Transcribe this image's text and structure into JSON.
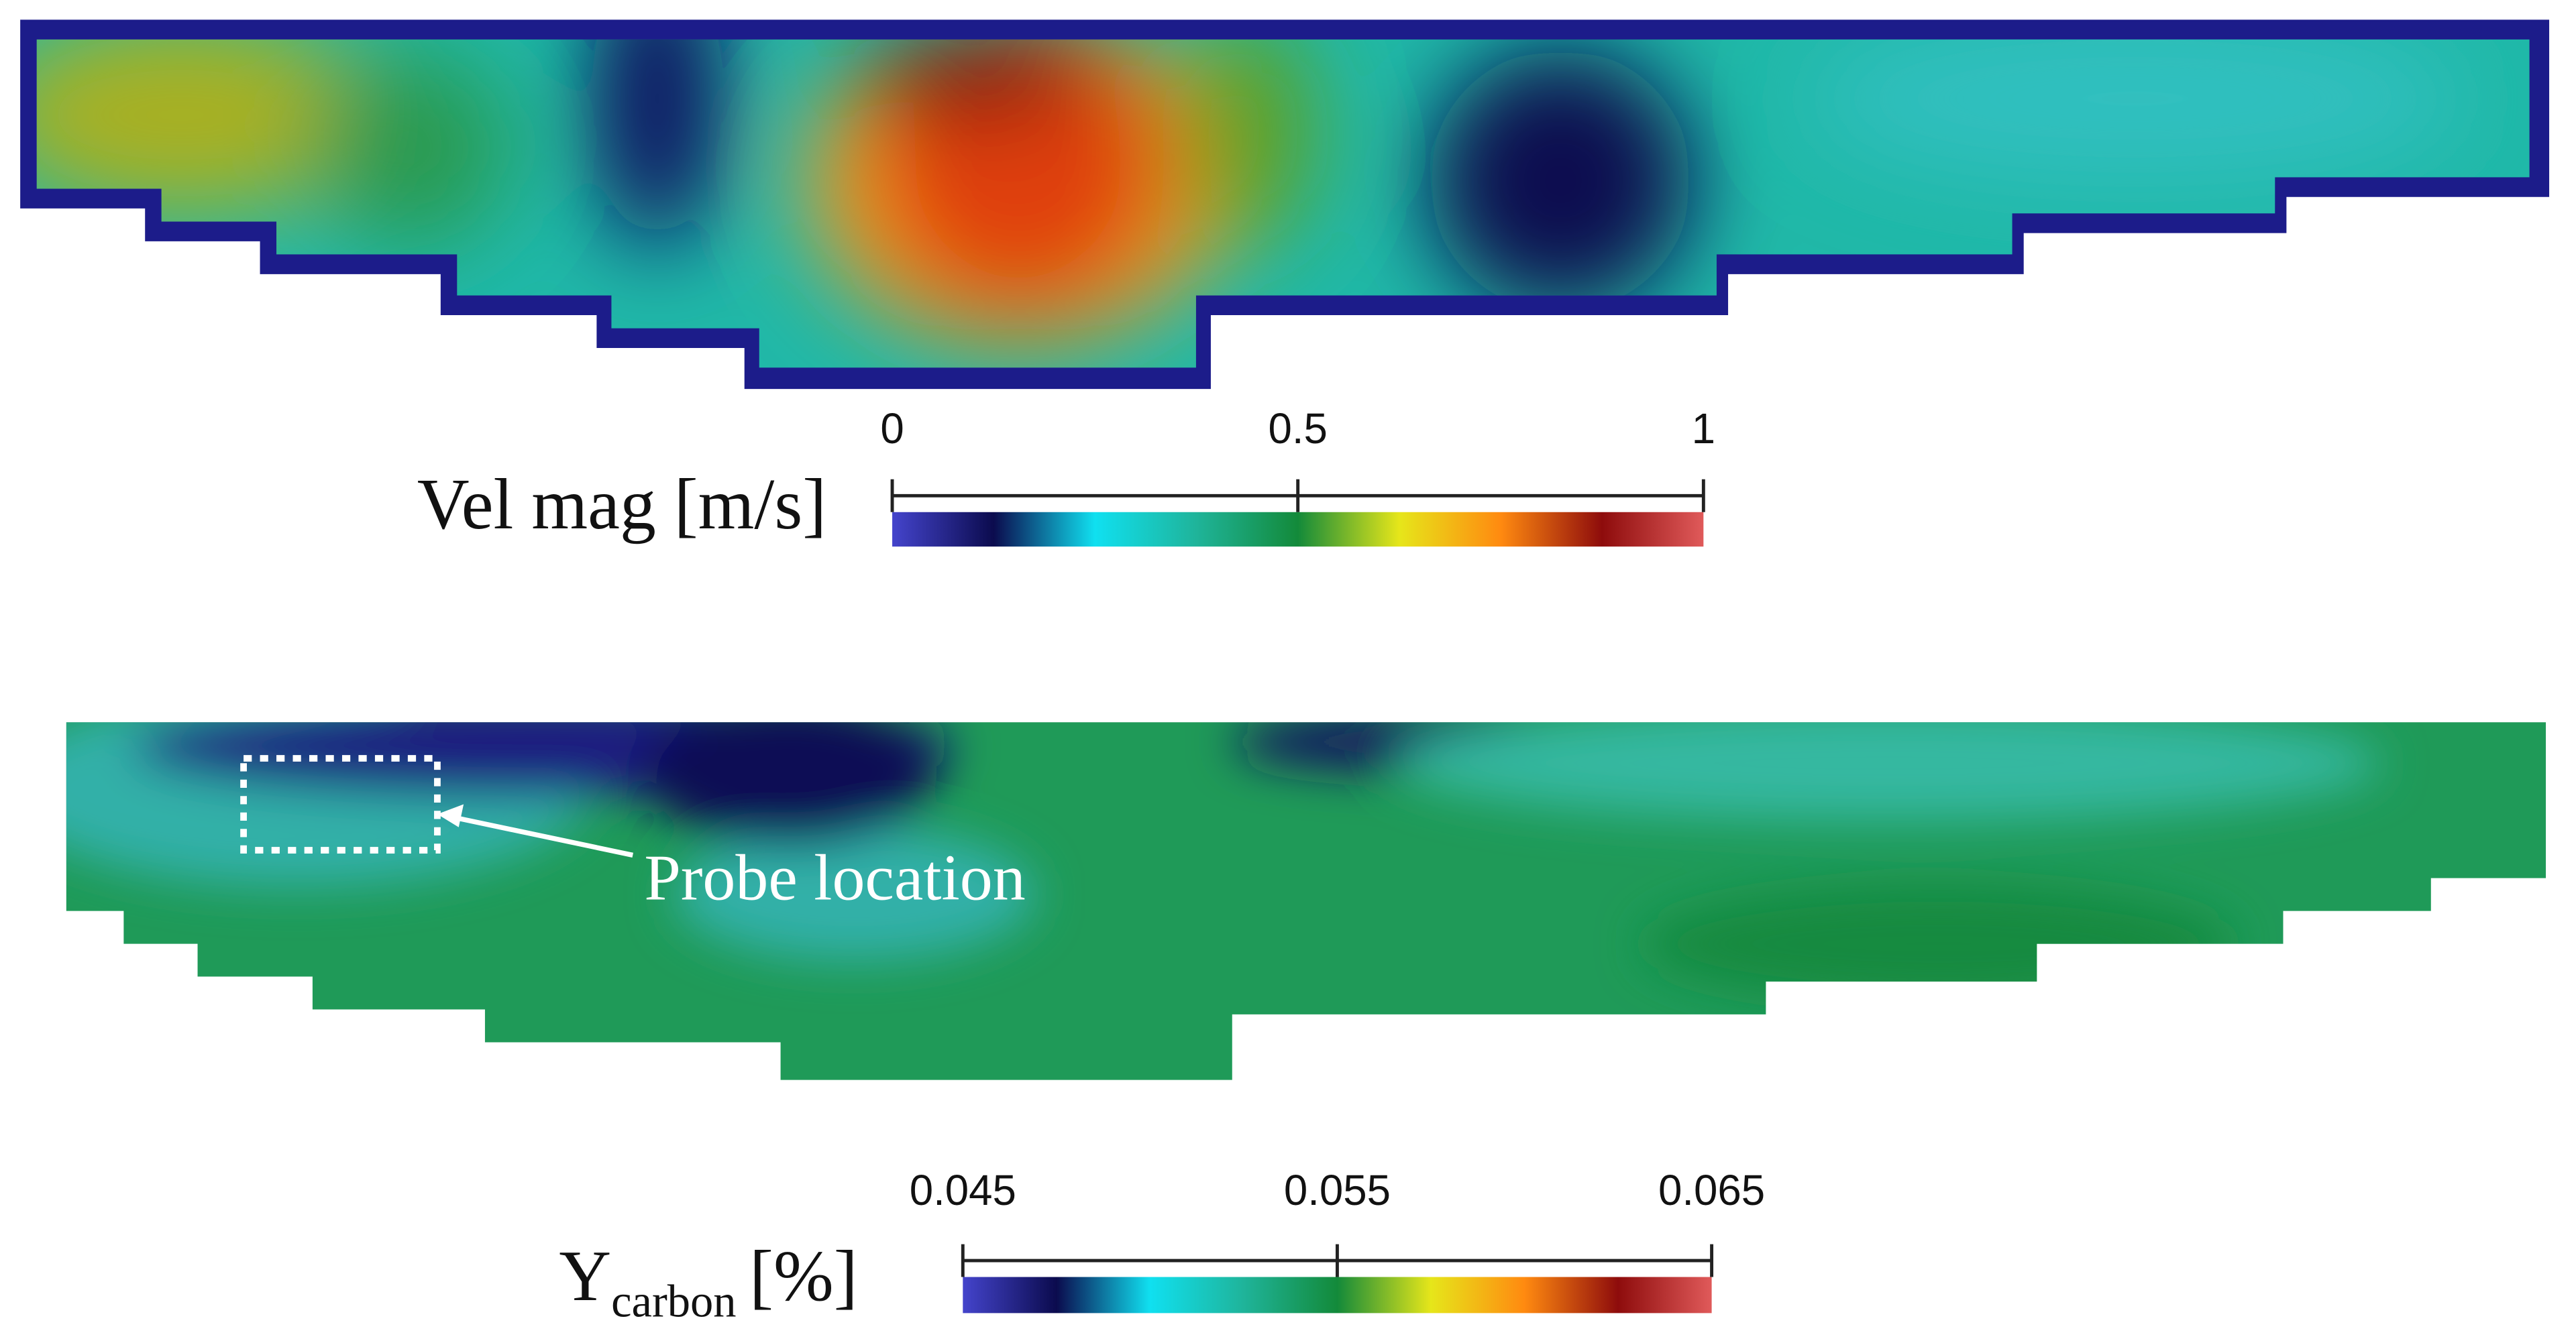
{
  "chart_data": [
    {
      "type": "contour",
      "colorbar_label": "Vel mag [m/s]",
      "clim": [
        0,
        1
      ],
      "cticks": [
        0,
        0.5,
        1
      ],
      "colormap": [
        "#4444cc",
        "#0b0b4e",
        "#10e0f0",
        "#1fb49a",
        "#138a3a",
        "#e6e61a",
        "#ff8a10",
        "#8e0c0c",
        "#e05a5a"
      ]
    },
    {
      "type": "contour",
      "colorbar_label": {
        "symbol": "Y",
        "subscript": "carbon",
        "unit": "[%]"
      },
      "clim": [
        0.045,
        0.065
      ],
      "cticks": [
        0.045,
        0.055,
        0.065
      ],
      "colormap": [
        "#4444cc",
        "#0b0b4e",
        "#10e0f0",
        "#1fb49a",
        "#138a3a",
        "#e6e61a",
        "#ff8a10",
        "#8e0c0c",
        "#e05a5a"
      ],
      "annotation": "Probe location"
    }
  ]
}
